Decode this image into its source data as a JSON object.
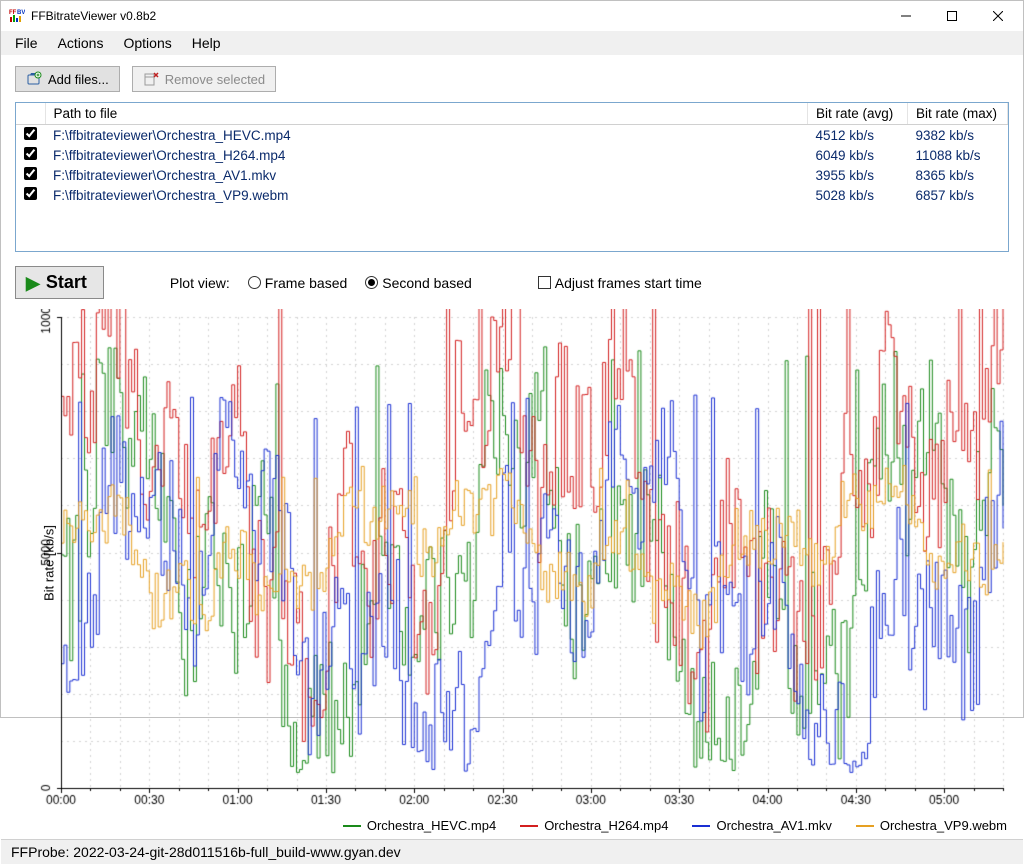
{
  "window": {
    "title": "FFBitrateViewer v0.8b2"
  },
  "menu": {
    "items": [
      "File",
      "Actions",
      "Options",
      "Help"
    ]
  },
  "toolbar": {
    "add_files": "Add files...",
    "remove_selected": "Remove selected"
  },
  "file_table": {
    "columns": {
      "path": "Path to file",
      "avg": "Bit rate (avg)",
      "max": "Bit rate (max)"
    },
    "rows": [
      {
        "checked": true,
        "path": "F:\\ffbitrateviewer\\Orchestra_HEVC.mp4",
        "avg": "4512 kb/s",
        "max": "9382 kb/s"
      },
      {
        "checked": true,
        "path": "F:\\ffbitrateviewer\\Orchestra_H264.mp4",
        "avg": "6049 kb/s",
        "max": "11088 kb/s"
      },
      {
        "checked": true,
        "path": "F:\\ffbitrateviewer\\Orchestra_AV1.mkv",
        "avg": "3955 kb/s",
        "max": "8365 kb/s"
      },
      {
        "checked": true,
        "path": "F:\\ffbitrateviewer\\Orchestra_VP9.webm",
        "avg": "5028 kb/s",
        "max": "6857 kb/s"
      }
    ]
  },
  "controls": {
    "start": "Start",
    "plot_view_label": "Plot view:",
    "frame_based": "Frame based",
    "second_based": "Second based",
    "selected_view": "second",
    "adjust_label": "Adjust frames start time",
    "adjust_checked": false
  },
  "chart": {
    "type": "line-step",
    "y_label": "Bit rate [kb/s]",
    "ylim": [
      0,
      10000
    ],
    "ytick_step": 5000,
    "x_seconds": 320,
    "x_tick_step_seconds": 30,
    "x_tick_labels": [
      "00:00",
      "00:30",
      "01:00",
      "01:30",
      "02:00",
      "02:30",
      "03:00",
      "03:30",
      "04:00",
      "04:30",
      "05:00"
    ],
    "background_color": "#ffffff",
    "grid_color": "#d4d4d4",
    "axis_color": "#000000",
    "line_width": 1,
    "label_fontsize": 12,
    "series": [
      {
        "name": "Orchestra_HEVC.mp4",
        "color": "#1a8a1a",
        "mean": 4512,
        "max": 9382,
        "seed": 101
      },
      {
        "name": "Orchestra_H264.mp4",
        "color": "#d31f1f",
        "mean": 6049,
        "max": 11088,
        "seed": 202
      },
      {
        "name": "Orchestra_AV1.mkv",
        "color": "#1a2fd3",
        "mean": 3955,
        "max": 8365,
        "seed": 303
      },
      {
        "name": "Orchestra_VP9.webm",
        "color": "#e6a022",
        "mean": 5028,
        "max": 6857,
        "seed": 404
      }
    ]
  },
  "status": {
    "text": "FFProbe: 2022-03-24-git-28d011516b-full_build-www.gyan.dev"
  }
}
